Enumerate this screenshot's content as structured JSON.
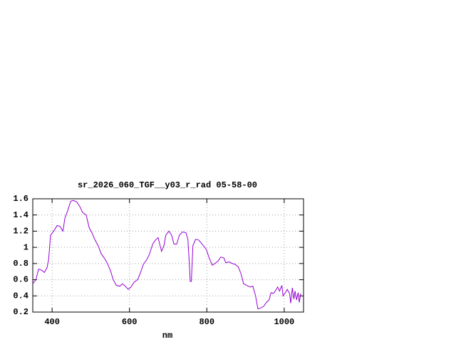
{
  "chart_data": {
    "type": "line",
    "title": "sr_2026_060_TGF__y03_r_rad 05-58-00",
    "x_label": "nm",
    "x": [
      350,
      358,
      365,
      372,
      380,
      387,
      391,
      396,
      404,
      413,
      420,
      428,
      433,
      440,
      448,
      455,
      464,
      472,
      479,
      488,
      496,
      503,
      510,
      519,
      527,
      536,
      543,
      551,
      558,
      566,
      575,
      582,
      589,
      597,
      604,
      612,
      621,
      628,
      636,
      645,
      652,
      660,
      667,
      674,
      683,
      689,
      694,
      702,
      709,
      715,
      722,
      729,
      737,
      746,
      751,
      755,
      757,
      760,
      764,
      771,
      779,
      786,
      793,
      799,
      806,
      814,
      821,
      829,
      836,
      844,
      849,
      857,
      866,
      873,
      881,
      888,
      895,
      903,
      912,
      919,
      926,
      932,
      939,
      947,
      954,
      961,
      966,
      972,
      977,
      983,
      988,
      994,
      997,
      1003,
      1008,
      1014,
      1017,
      1021,
      1025,
      1028,
      1032,
      1036,
      1039,
      1043
    ],
    "series": [
      {
        "color": "#9400d3",
        "values": [
          0.55,
          0.6,
          0.73,
          0.72,
          0.69,
          0.75,
          0.85,
          1.15,
          1.2,
          1.27,
          1.26,
          1.2,
          1.36,
          1.45,
          1.57,
          1.58,
          1.56,
          1.5,
          1.43,
          1.4,
          1.24,
          1.18,
          1.1,
          1.02,
          0.92,
          0.86,
          0.8,
          0.71,
          0.6,
          0.53,
          0.52,
          0.55,
          0.52,
          0.48,
          0.51,
          0.57,
          0.6,
          0.68,
          0.79,
          0.85,
          0.92,
          1.04,
          1.09,
          1.12,
          0.95,
          1.02,
          1.15,
          1.2,
          1.15,
          1.04,
          1.04,
          1.15,
          1.19,
          1.18,
          1.1,
          0.78,
          0.58,
          0.58,
          1.02,
          1.1,
          1.09,
          1.05,
          1.01,
          0.97,
          0.87,
          0.78,
          0.8,
          0.83,
          0.88,
          0.87,
          0.81,
          0.82,
          0.8,
          0.79,
          0.76,
          0.68,
          0.55,
          0.53,
          0.51,
          0.52,
          0.4,
          0.24,
          0.25,
          0.27,
          0.32,
          0.35,
          0.44,
          0.43,
          0.46,
          0.51,
          0.46,
          0.53,
          0.4,
          0.44,
          0.48,
          0.43,
          0.31,
          0.5,
          0.36,
          0.46,
          0.35,
          0.44,
          0.32,
          0.43
        ]
      }
    ],
    "xlim": [
      350,
      1050
    ],
    "xticks": [
      400,
      600,
      800,
      1000
    ],
    "ylim": [
      0.2,
      1.6
    ],
    "yticks": [
      0.2,
      0.4,
      0.6,
      0.8,
      1,
      1.2,
      1.4,
      1.6
    ],
    "grid": true
  }
}
